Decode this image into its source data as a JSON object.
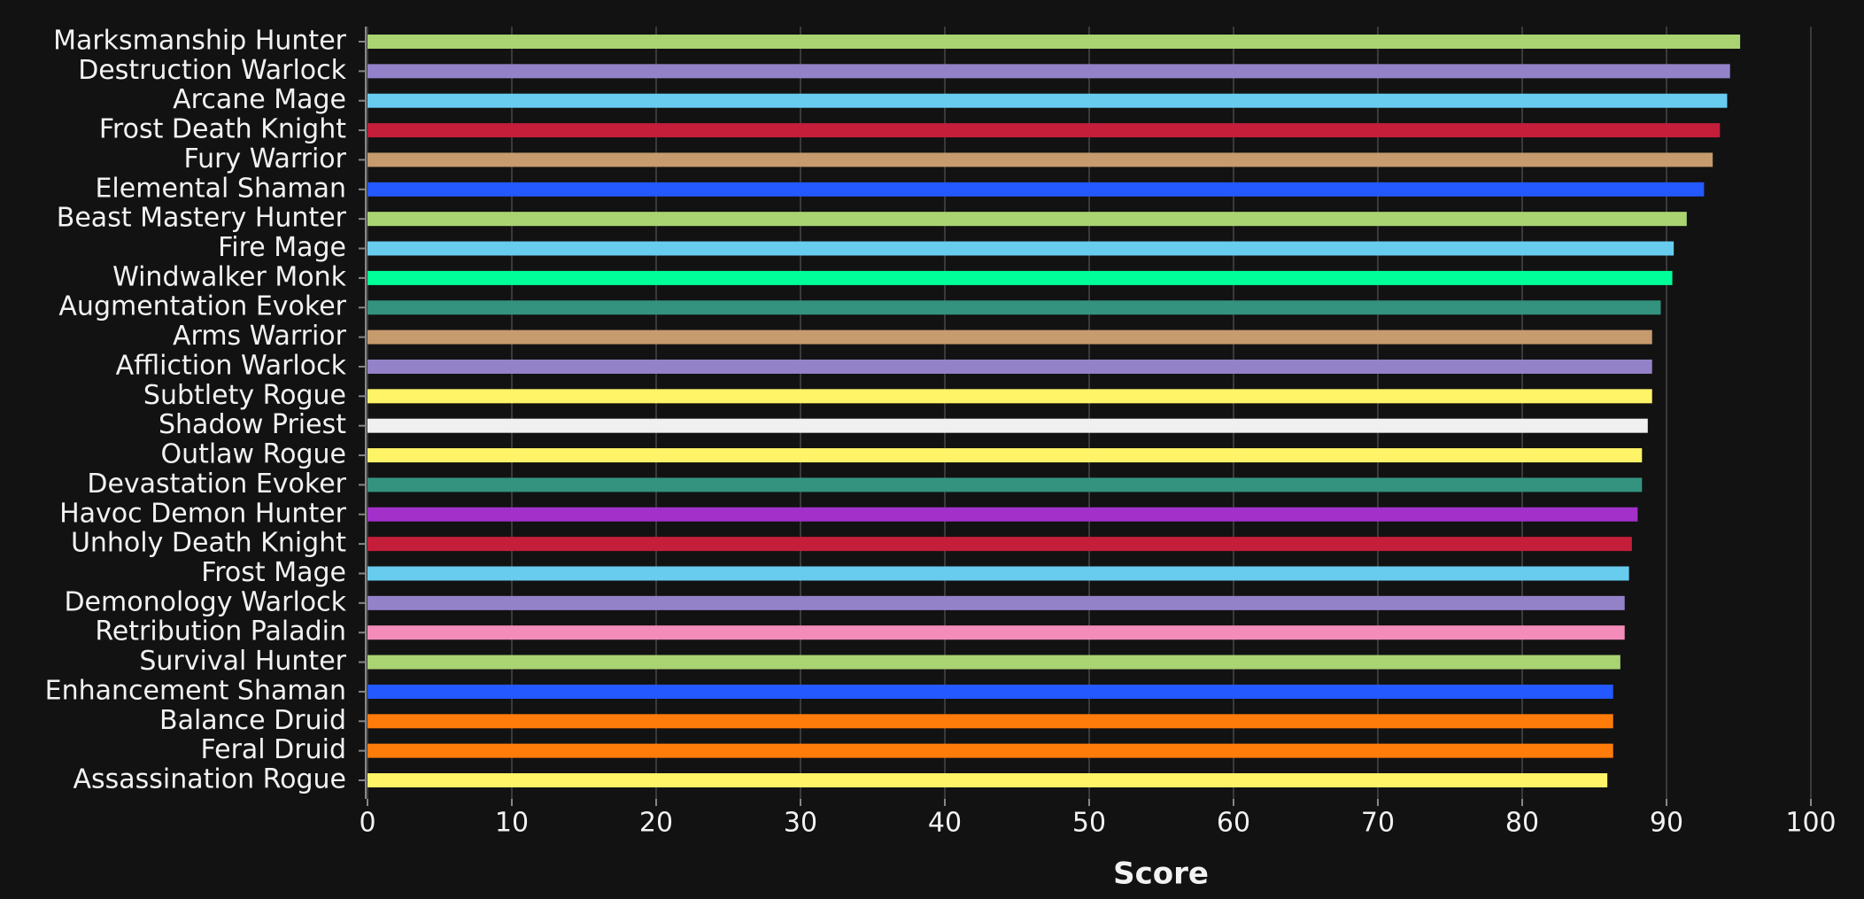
{
  "chart_data": {
    "type": "bar",
    "orientation": "horizontal",
    "x_label": "Score",
    "categories": [
      "Marksmanship Hunter",
      "Destruction Warlock",
      "Arcane Mage",
      "Frost Death Knight",
      "Fury Warrior",
      "Elemental Shaman",
      "Beast Mastery Hunter",
      "Fire Mage",
      "Windwalker Monk",
      "Augmentation Evoker",
      "Arms Warrior",
      "Affliction Warlock",
      "Subtlety Rogue",
      "Shadow Priest",
      "Outlaw Rogue",
      "Devastation Evoker",
      "Havoc Demon Hunter",
      "Unholy Death Knight",
      "Frost Mage",
      "Demonology Warlock",
      "Retribution Paladin",
      "Survival Hunter",
      "Enhancement Shaman",
      "Balance Druid",
      "Feral Druid",
      "Assassination Rogue"
    ],
    "values": [
      95.1,
      94.4,
      94.2,
      93.7,
      93.2,
      92.6,
      91.4,
      90.5,
      90.4,
      89.6,
      89.0,
      89.0,
      89.0,
      88.7,
      88.3,
      88.3,
      88.0,
      87.6,
      87.4,
      87.1,
      87.1,
      86.8,
      86.3,
      86.3,
      86.3,
      85.9
    ],
    "colors": [
      "#aad372",
      "#9482c9",
      "#68ccef",
      "#c41e3a",
      "#c69b6d",
      "#2459ff",
      "#aad372",
      "#68ccef",
      "#00ff98",
      "#33937f",
      "#c69b6d",
      "#9482c9",
      "#fff468",
      "#f0f0f0",
      "#fff468",
      "#33937f",
      "#a330c9",
      "#c41e3a",
      "#68ccef",
      "#9482c9",
      "#f48cba",
      "#aad372",
      "#2459ff",
      "#ff7c0a",
      "#ff7c0a",
      "#fff468"
    ],
    "xlim": [
      0,
      100
    ],
    "xticks": [
      0,
      10,
      20,
      30,
      40,
      50,
      60,
      70,
      80,
      90,
      100
    ],
    "grid": true
  }
}
